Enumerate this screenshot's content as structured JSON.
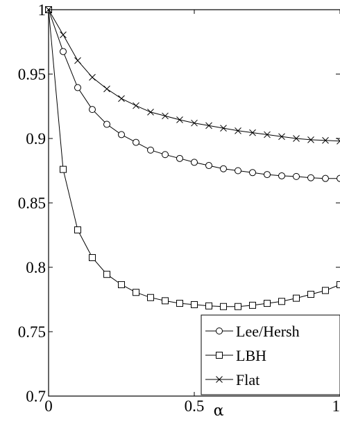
{
  "chart_data": {
    "type": "line",
    "xlabel": "α",
    "ylabel": "",
    "xlim": [
      0,
      1
    ],
    "ylim": [
      0.7,
      1
    ],
    "x_ticks": [
      {
        "value": 0,
        "label": "0"
      },
      {
        "value": 0.5,
        "label": "0.5"
      },
      {
        "value": 1,
        "label": "1"
      }
    ],
    "y_ticks": [
      {
        "value": 0.7,
        "label": "0.7"
      },
      {
        "value": 0.75,
        "label": "0.75"
      },
      {
        "value": 0.8,
        "label": "0.8"
      },
      {
        "value": 0.85,
        "label": "0.85"
      },
      {
        "value": 0.9,
        "label": "0.9"
      },
      {
        "value": 0.95,
        "label": "0.95"
      },
      {
        "value": 1,
        "label": "1"
      }
    ],
    "grid": false,
    "legend_position": "bottom-right",
    "x": [
      0,
      0.05,
      0.1,
      0.15,
      0.2,
      0.25,
      0.3,
      0.35,
      0.4,
      0.45,
      0.5,
      0.55,
      0.6,
      0.65,
      0.7,
      0.75,
      0.8,
      0.85,
      0.9,
      0.95,
      1.0
    ],
    "series": [
      {
        "name": "Lee/Hersh",
        "marker": "circle",
        "values": [
          1.0,
          0.9675,
          0.9395,
          0.9225,
          0.911,
          0.903,
          0.897,
          0.891,
          0.8875,
          0.8845,
          0.8815,
          0.879,
          0.8765,
          0.875,
          0.8735,
          0.872,
          0.871,
          0.8705,
          0.8695,
          0.869,
          0.869
        ]
      },
      {
        "name": "LBH",
        "marker": "square",
        "values": [
          1.0,
          0.876,
          0.829,
          0.8075,
          0.7945,
          0.7865,
          0.7805,
          0.7765,
          0.774,
          0.772,
          0.771,
          0.77,
          0.7695,
          0.7695,
          0.7705,
          0.772,
          0.7735,
          0.776,
          0.779,
          0.782,
          0.7865
        ]
      },
      {
        "name": "Flat",
        "marker": "x",
        "values": [
          1.0,
          0.9805,
          0.9605,
          0.9475,
          0.9385,
          0.931,
          0.9255,
          0.9205,
          0.9175,
          0.9145,
          0.912,
          0.91,
          0.908,
          0.906,
          0.9045,
          0.903,
          0.9015,
          0.9,
          0.899,
          0.8985,
          0.898
        ]
      }
    ]
  }
}
